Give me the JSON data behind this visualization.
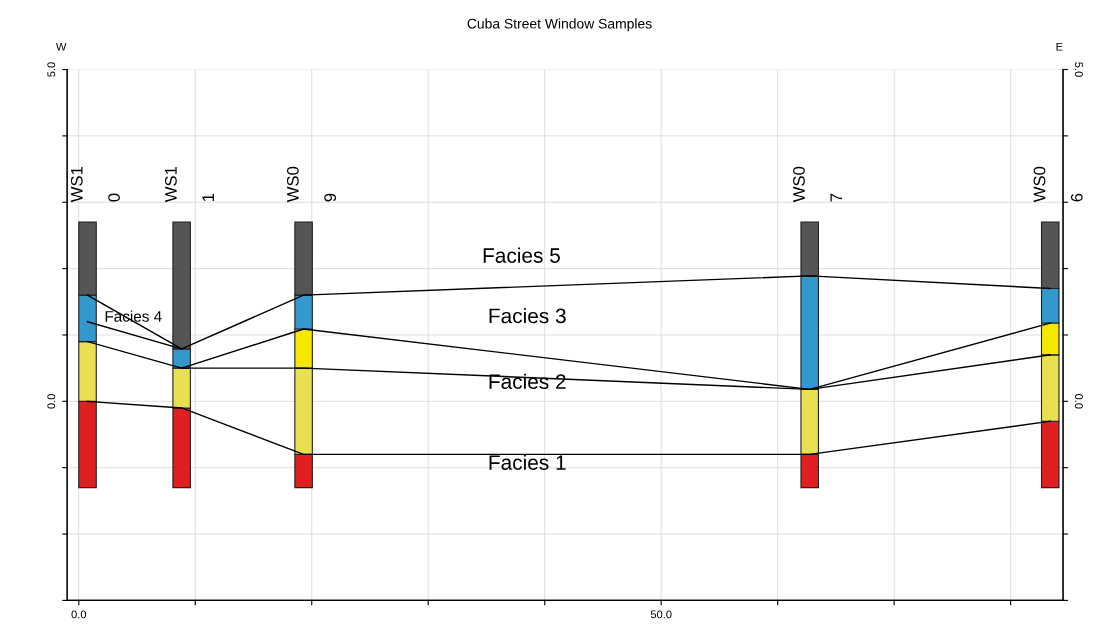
{
  "chart_data": {
    "type": "bar",
    "title": "Cuba Street Window Samples",
    "x": [
      0.75,
      8.83,
      19.3,
      62.75,
      83.4
    ],
    "series": [
      {
        "color": "#e02020",
        "base": [
          -1.3,
          -1.3,
          -1.3,
          -1.3,
          -1.3
        ],
        "values": [
          1.3,
          1.2,
          0.5,
          0.5,
          1.0
        ]
      },
      {
        "color": "#e8e050",
        "base": [
          0,
          -0.1,
          -0.8,
          -0.8,
          -0.3
        ],
        "values": [
          0.9,
          0.6,
          1.3,
          0.98,
          1.0
        ]
      },
      {
        "color": "#f5e800",
        "base": [
          null,
          null,
          0.5,
          null,
          0.7
        ],
        "values": [
          null,
          null,
          0.59,
          null,
          0.48
        ]
      },
      {
        "color": "#3399cc",
        "base": [
          0.9,
          0.5,
          1.09,
          0.18,
          1.18
        ],
        "values": [
          0.7,
          0.29,
          0.51,
          1.71,
          0.52
        ]
      },
      {
        "color": "#555555",
        "base": [
          1.6,
          0.79,
          1.6,
          1.89,
          1.7
        ],
        "values": [
          1.1,
          1.91,
          1.1,
          0.81,
          1.0
        ]
      },
      {
        "type": "line",
        "color": "#000000",
        "x": [
          0.75,
          8.83,
          19.3,
          62.75,
          83.4
        ],
        "values": [
          0,
          -0.1,
          -0.8,
          -0.8,
          -0.3
        ]
      },
      {
        "type": "line",
        "color": "#000000",
        "x": [
          0.75,
          8.83,
          19.3,
          62.75,
          83.4
        ],
        "values": [
          0.9,
          0.5,
          0.5,
          0.18,
          0.7
        ]
      },
      {
        "type": "line",
        "color": "#000000",
        "x": [
          8.83,
          19.3,
          62.75,
          83.4
        ],
        "values": [
          0.5,
          1.09,
          0.18,
          1.18
        ]
      },
      {
        "type": "line",
        "color": "#000000",
        "x": [
          0.75,
          8.83,
          19.3,
          62.75,
          83.4
        ],
        "values": [
          1.6,
          0.79,
          1.6,
          1.89,
          1.7
        ]
      },
      {
        "type": "line",
        "color": "#000000",
        "x": [
          0.75,
          8.83
        ],
        "values": [
          1.2,
          0.79
        ]
      }
    ],
    "annotations": [
      "W",
      "E",
      "WS1",
      "0",
      "WS1",
      "1",
      "WS0",
      "9",
      "WS0",
      "7",
      "WS0",
      "6",
      "Facies 5",
      "Facies 4",
      "Facies 3",
      "Facies 2",
      "Facies 1"
    ],
    "xlim": [
      -1,
      84.5
    ],
    "ylim": [
      -3,
      5
    ],
    "y2lim": [
      -3,
      5
    ],
    "xticks": [
      {
        "value": 0,
        "label": "0.0"
      },
      {
        "value": 10,
        "label": null
      },
      {
        "value": 20,
        "label": null
      },
      {
        "value": 30,
        "label": null
      },
      {
        "value": 40,
        "label": null
      },
      {
        "value": 50,
        "label": "50.0"
      },
      {
        "value": 60,
        "label": null
      },
      {
        "value": 70,
        "label": null
      },
      {
        "value": 80,
        "label": null
      }
    ],
    "yticks": [
      {
        "value": -3,
        "label": null
      },
      {
        "value": -2,
        "label": null
      },
      {
        "value": -1,
        "label": null
      },
      {
        "value": 0,
        "label": "0.0"
      },
      {
        "value": 1,
        "label": null
      },
      {
        "value": 2,
        "label": null
      },
      {
        "value": 3,
        "label": null
      },
      {
        "value": 4,
        "label": null
      },
      {
        "value": 5,
        "label": "5.0"
      }
    ],
    "y2ticks": [
      {
        "value": -3,
        "label": null
      },
      {
        "value": -2,
        "label": null
      },
      {
        "value": -1,
        "label": null
      },
      {
        "value": 0,
        "label": "0.0"
      },
      {
        "value": 1,
        "label": null
      },
      {
        "value": 2,
        "label": null
      },
      {
        "value": 3,
        "label": null
      },
      {
        "value": 4,
        "label": null
      },
      {
        "value": 5,
        "label": "5.0"
      }
    ],
    "grid": true
  }
}
